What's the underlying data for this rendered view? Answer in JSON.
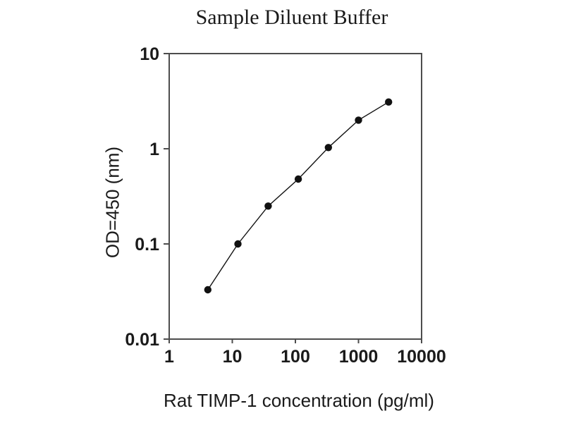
{
  "page": {
    "background": "#ffffff",
    "text_color": "#1a1a1a",
    "axis_color": "#4d4d4d"
  },
  "chart_data": {
    "type": "line",
    "title": "Sample Diluent Buffer",
    "xlabel": "Rat TIMP-1 concentration (pg/ml)",
    "ylabel": "OD=450 (nm)",
    "x_scale": "log",
    "y_scale": "log",
    "xlim": [
      1,
      10000
    ],
    "ylim": [
      0.01,
      10
    ],
    "grid": false,
    "legend": "none",
    "x_ticks": [
      {
        "value": 1,
        "label": "1"
      },
      {
        "value": 10,
        "label": "10"
      },
      {
        "value": 100,
        "label": "100"
      },
      {
        "value": 1000,
        "label": "1000"
      },
      {
        "value": 10000,
        "label": "10000"
      }
    ],
    "y_ticks": [
      {
        "value": 10,
        "label": "10"
      },
      {
        "value": 1,
        "label": "1"
      },
      {
        "value": 0.1,
        "label": "0.1"
      },
      {
        "value": 0.01,
        "label": "0.01"
      }
    ],
    "series": [
      {
        "name": "standard-curve",
        "marker": "filled-circle",
        "color": "#111111",
        "points": [
          {
            "x": 4.1,
            "y": 0.033
          },
          {
            "x": 12.3,
            "y": 0.1
          },
          {
            "x": 37,
            "y": 0.25
          },
          {
            "x": 111,
            "y": 0.48
          },
          {
            "x": 333,
            "y": 1.03
          },
          {
            "x": 1000,
            "y": 2.0
          },
          {
            "x": 3000,
            "y": 3.1
          }
        ]
      }
    ]
  }
}
